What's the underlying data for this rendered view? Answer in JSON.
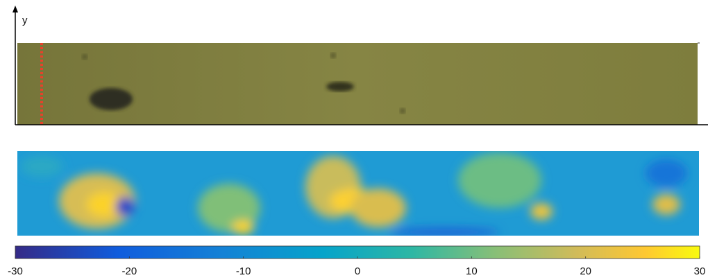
{
  "chart_data": {
    "type": "colorbar",
    "ylabel": "y",
    "xlim": [
      -30,
      30
    ],
    "xticks": [
      -30,
      -20,
      -10,
      0,
      10,
      20,
      30
    ]
  }
}
